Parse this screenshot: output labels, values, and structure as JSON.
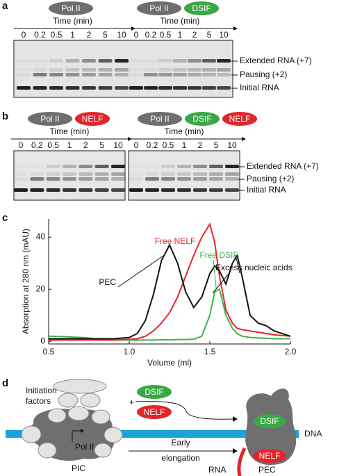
{
  "panel_a": {
    "label": "a",
    "groups": [
      {
        "factors": [
          "Pol II"
        ],
        "time_label": "Time (min)",
        "lanes": [
          0,
          0.2,
          0.5,
          1,
          2,
          5,
          10
        ]
      },
      {
        "factors": [
          "Pol II",
          "DSIF"
        ],
        "time_label": "Time (min)",
        "lanes": [
          0,
          0.2,
          0.5,
          1,
          2,
          5,
          10
        ]
      }
    ],
    "bands": [
      "Extended RNA (+7)",
      "Pausing (+2)",
      "Initial RNA"
    ]
  },
  "panel_b": {
    "label": "b",
    "groups": [
      {
        "factors": [
          "Pol II",
          "NELF"
        ],
        "time_label": "Time (min)",
        "lanes": [
          0,
          0.2,
          0.5,
          1,
          2,
          5,
          10
        ]
      },
      {
        "factors": [
          "Pol II",
          "DSIF",
          "NELF"
        ],
        "time_label": "Time (min)",
        "lanes": [
          0,
          0.2,
          0.5,
          1,
          2,
          5,
          10
        ]
      }
    ],
    "bands": [
      "Extended RNA (+7)",
      "Pausing (+2)",
      "Initial RNA"
    ]
  },
  "chart_data": {
    "type": "line",
    "label": "c",
    "xlabel": "Volume (ml)",
    "ylabel": "Absorption at 280 nm (mAU)",
    "xlim": [
      0.5,
      2.0
    ],
    "ylim": [
      -1,
      47
    ],
    "xticks": [
      0.5,
      {
        "value": 1,
        "label": "1.0"
      },
      1.5,
      {
        "value": 2,
        "label": "2.0"
      }
    ],
    "yticks": [
      0,
      20,
      40
    ],
    "x": [
      0.5,
      0.6,
      0.7,
      0.8,
      0.9,
      1.0,
      1.05,
      1.1,
      1.15,
      1.2,
      1.25,
      1.3,
      1.35,
      1.4,
      1.45,
      1.5,
      1.53,
      1.56,
      1.6,
      1.64,
      1.67,
      1.7,
      1.75,
      1.8,
      1.85,
      1.9,
      2.0
    ],
    "series": [
      {
        "name": "PEC",
        "color": "#111111",
        "values": [
          1,
          1,
          1,
          1,
          1,
          1.5,
          3,
          8,
          18,
          31,
          37,
          30,
          19,
          13,
          17,
          26,
          29,
          27,
          22,
          30,
          33,
          25,
          10,
          7,
          6,
          4,
          2
        ]
      },
      {
        "name": "Free NELF",
        "color": "#e8232b",
        "values": [
          0.5,
          0.5,
          0.5,
          0.5,
          0.5,
          0.8,
          1,
          2,
          4,
          7,
          11,
          17,
          25,
          33,
          40,
          45,
          38,
          25,
          12,
          7,
          5,
          4.5,
          4,
          3.5,
          3,
          2.5,
          2
        ]
      },
      {
        "name": "Free DSIF",
        "color": "#3cb44b",
        "values": [
          2,
          1.8,
          1.5,
          1,
          0.5,
          0.5,
          0.5,
          0.5,
          0.5,
          0.6,
          0.6,
          0.7,
          0.7,
          0.8,
          2,
          10,
          19,
          20,
          10,
          5,
          3,
          2,
          1.5,
          1.3,
          1.2,
          1,
          1
        ]
      }
    ],
    "annotation": "Excess nucleic acids"
  },
  "panel_d": {
    "label": "d",
    "initiation_factors": [
      "Initiation",
      "factors"
    ],
    "pol": "Pol II",
    "pic": "PIC",
    "dsif": [
      "DSIF",
      "DSIF"
    ],
    "nelf": [
      "NELF",
      "NELF"
    ],
    "plus": "+",
    "step": [
      "Early",
      "elongation"
    ],
    "dna": "DNA",
    "rna": "RNA",
    "pec": "PEC"
  }
}
